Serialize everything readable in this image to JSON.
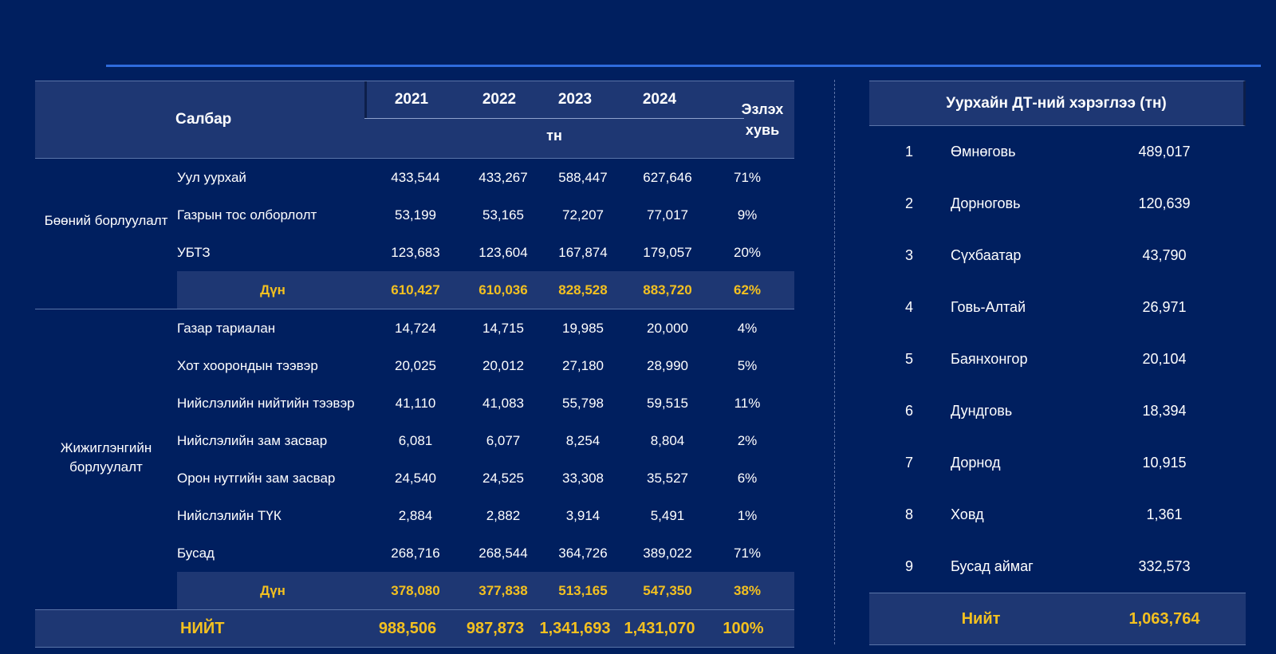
{
  "left_table": {
    "header": {
      "sector": "Салбар",
      "years": [
        "2021",
        "2022",
        "2023",
        "2024"
      ],
      "unit": "тн",
      "share": "Эзлэх хувь"
    },
    "wholesale": {
      "label": "Бөөний борлуулалт",
      "rows": [
        {
          "name": "Уул уурхай",
          "values": [
            "433,544",
            "433,267",
            "588,447",
            "627,646"
          ],
          "share": "71%"
        },
        {
          "name": "Газрын тос олборлолт",
          "values": [
            "53,199",
            "53,165",
            "72,207",
            "77,017"
          ],
          "share": "9%"
        },
        {
          "name": "УБТЗ",
          "values": [
            "123,683",
            "123,604",
            "167,874",
            "179,057"
          ],
          "share": "20%"
        }
      ],
      "sum": {
        "name": "Дүн",
        "values": [
          "610,427",
          "610,036",
          "828,528",
          "883,720"
        ],
        "share": "62%"
      }
    },
    "retail": {
      "label": "Жижиглэнгийн борлуулалт",
      "rows": [
        {
          "name": "Газар тариалан",
          "values": [
            "14,724",
            "14,715",
            "19,985",
            "20,000"
          ],
          "share": "4%"
        },
        {
          "name": "Хот хоорондын тээвэр",
          "values": [
            "20,025",
            "20,012",
            "27,180",
            "28,990"
          ],
          "share": "5%"
        },
        {
          "name": "Нийслэлийн нийтийн тээвэр",
          "values": [
            "41,110",
            "41,083",
            "55,798",
            "59,515"
          ],
          "share": "11%"
        },
        {
          "name": "Нийслэлийн зам засвар",
          "values": [
            "6,081",
            "6,077",
            "8,254",
            "8,804"
          ],
          "share": "2%"
        },
        {
          "name": "Орон нутгийн зам засвар",
          "values": [
            "24,540",
            "24,525",
            "33,308",
            "35,527"
          ],
          "share": "6%"
        },
        {
          "name": "Нийслэлийн ТҮК",
          "values": [
            "2,884",
            "2,882",
            "3,914",
            "5,491"
          ],
          "share": "1%"
        },
        {
          "name": "Бусад",
          "values": [
            "268,716",
            "268,544",
            "364,726",
            "389,022"
          ],
          "share": "71%"
        }
      ],
      "sum": {
        "name": "Дүн",
        "values": [
          "378,080",
          "377,838",
          "513,165",
          "547,350"
        ],
        "share": "38%"
      }
    },
    "total": {
      "name": "НИЙТ",
      "values": [
        "988,506",
        "987,873",
        "1,341,693",
        "1,431,070"
      ],
      "share": "100%"
    }
  },
  "right_table": {
    "title": "Уурхайн ДТ-ний хэрэглээ (тн)",
    "rows": [
      {
        "num": "1",
        "name": "Өмнөговь",
        "value": "489,017"
      },
      {
        "num": "2",
        "name": "Дорноговь",
        "value": "120,639"
      },
      {
        "num": "3",
        "name": "Сүхбаатар",
        "value": "43,790"
      },
      {
        "num": "4",
        "name": "Говь-Алтай",
        "value": "26,971"
      },
      {
        "num": "5",
        "name": "Баянхонгор",
        "value": "20,104"
      },
      {
        "num": "6",
        "name": "Дундговь",
        "value": "18,394"
      },
      {
        "num": "7",
        "name": "Дорнод",
        "value": "10,915"
      },
      {
        "num": "8",
        "name": "Ховд",
        "value": "1,361"
      },
      {
        "num": "9",
        "name": "Бусад аймаг",
        "value": "332,573"
      }
    ],
    "total": {
      "name": "Нийт",
      "value": "1,063,764"
    }
  },
  "colors": {
    "background": "#001f5f",
    "header": "#1e3773",
    "accent": "#f3c020",
    "rule": "#2f6bdc"
  }
}
